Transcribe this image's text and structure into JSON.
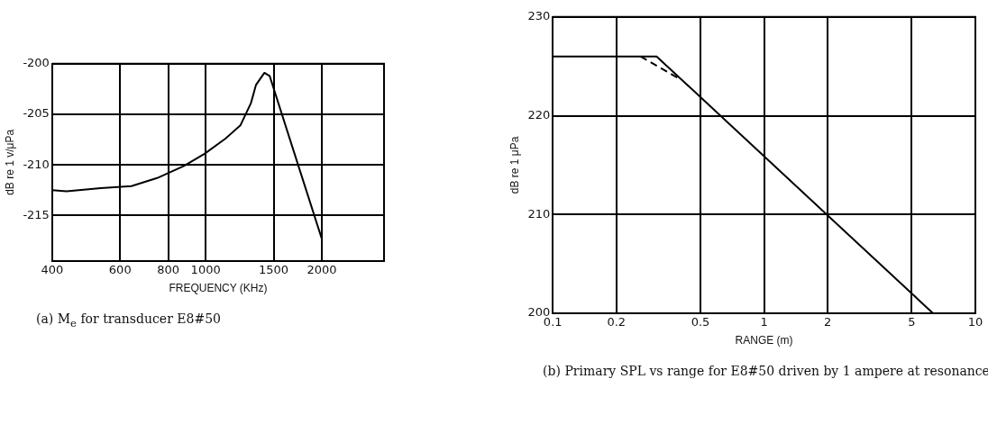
{
  "chart_data": [
    {
      "type": "line",
      "title": "(a) M$_{e}$ for transducer E8#50",
      "xlabel": "FREQUENCY (KHz)",
      "ylabel": "dB re 1 v/μPa",
      "log": "x",
      "xlim": [
        400,
        2900
      ],
      "xticks": [
        400,
        600,
        800,
        1000,
        1500,
        2000
      ],
      "ylim": [
        -219.5,
        -200
      ],
      "yticks": [
        -200,
        -205,
        -210,
        -215
      ],
      "grid": true,
      "legend": false,
      "marker": "none",
      "x": [
        400,
        436,
        534,
        642,
        748,
        878,
        993,
        1125,
        1230,
        1310,
        1350,
        1420,
        1465,
        1700,
        2000
      ],
      "series": [
        {
          "color": "#000000",
          "line_style": "solid",
          "values": [
            -212.5,
            -212.6,
            -212.3,
            -212.1,
            -211.3,
            -210.1,
            -208.9,
            -207.4,
            -206.1,
            -203.9,
            -202.1,
            -200.9,
            -201.2,
            -208.9,
            -217.3
          ]
        }
      ]
    },
    {
      "type": "line",
      "title": "(b) Primary SPL vs range for E8#50 driven by 1 ampere at resonance",
      "xlabel": "RANGE (m)",
      "ylabel": "dB re 1 μPa",
      "log": "x",
      "xlim": [
        0.1,
        10
      ],
      "xticks": [
        0.1,
        0.2,
        0.5,
        1,
        2,
        5,
        10
      ],
      "ylim": [
        200,
        230
      ],
      "yticks": [
        200,
        210,
        220,
        230
      ],
      "grid": true,
      "legend": false,
      "marker": "none",
      "series": [
        {
          "color": "#000000",
          "line_style": "solid",
          "x": [
            0.1,
            0.31,
            6.3
          ],
          "values": [
            226,
            226,
            200
          ]
        },
        {
          "color": "#000000",
          "line_style": "dashed",
          "x": [
            0.26,
            0.4
          ],
          "values": [
            226,
            223.7
          ]
        }
      ]
    }
  ]
}
